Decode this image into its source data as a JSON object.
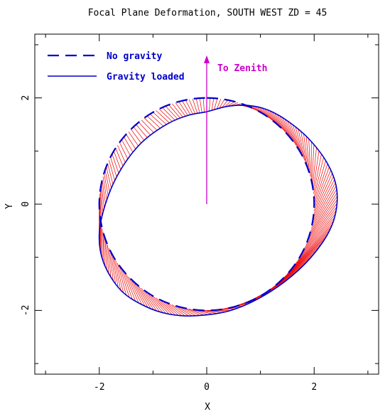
{
  "chart_data": {
    "type": "line",
    "title": "Focal Plane Deformation, SOUTH WEST ZD = 45",
    "xlabel": "X",
    "ylabel": "Y",
    "xlim": [
      -3.2,
      3.2
    ],
    "ylim": [
      -3.2,
      3.2
    ],
    "xticks": [
      -2,
      0,
      2
    ],
    "yticks": [
      -2,
      0,
      2
    ],
    "xtick_labels": [
      "-2",
      "0",
      "2"
    ],
    "ytick_labels": [
      "-2",
      "0",
      "2"
    ],
    "grid": false,
    "legend_position": "top-left",
    "series": [
      {
        "name": "No gravity",
        "style": "dashed",
        "color": "#0000cc",
        "points": [
          [
            0.0,
            2.0
          ],
          [
            0.52,
            1.93
          ],
          [
            1.0,
            1.73
          ],
          [
            1.41,
            1.41
          ],
          [
            1.73,
            1.0
          ],
          [
            1.93,
            0.52
          ],
          [
            2.0,
            0.0
          ],
          [
            1.93,
            -0.52
          ],
          [
            1.73,
            -1.0
          ],
          [
            1.41,
            -1.41
          ],
          [
            1.0,
            -1.73
          ],
          [
            0.52,
            -1.93
          ],
          [
            0.0,
            -2.0
          ],
          [
            -0.52,
            -1.93
          ],
          [
            -1.0,
            -1.73
          ],
          [
            -1.41,
            -1.41
          ],
          [
            -1.73,
            -1.0
          ],
          [
            -1.93,
            -0.52
          ],
          [
            -2.0,
            0.0
          ],
          [
            -1.93,
            0.52
          ],
          [
            -1.73,
            1.0
          ],
          [
            -1.41,
            1.41
          ],
          [
            -1.0,
            1.73
          ],
          [
            -0.52,
            1.93
          ],
          [
            0.0,
            2.0
          ]
        ]
      },
      {
        "name": "Gravity loaded",
        "style": "solid",
        "color": "#0000cc",
        "points": [
          [
            0.0,
            1.74
          ],
          [
            0.38,
            1.84
          ],
          [
            0.75,
            1.86
          ],
          [
            1.12,
            1.78
          ],
          [
            1.5,
            1.57
          ],
          [
            1.9,
            1.23
          ],
          [
            2.25,
            0.76
          ],
          [
            2.42,
            0.28
          ],
          [
            2.38,
            -0.25
          ],
          [
            2.15,
            -0.73
          ],
          [
            1.7,
            -1.25
          ],
          [
            1.1,
            -1.7
          ],
          [
            0.45,
            -2.0
          ],
          [
            -0.2,
            -2.1
          ],
          [
            -0.7,
            -2.07
          ],
          [
            -1.15,
            -1.92
          ],
          [
            -1.6,
            -1.62
          ],
          [
            -1.92,
            -1.1
          ],
          [
            -2.0,
            -0.55
          ],
          [
            -1.86,
            0.08
          ],
          [
            -1.6,
            0.65
          ],
          [
            -1.22,
            1.15
          ],
          [
            -0.75,
            1.5
          ],
          [
            -0.35,
            1.67
          ],
          [
            0.0,
            1.74
          ]
        ]
      }
    ],
    "displacement_color": "#ee0000",
    "annotation": {
      "label": "To Zenith",
      "color": "#cc00cc",
      "from": [
        0.0,
        0.0
      ],
      "to": [
        0.0,
        2.8
      ]
    }
  }
}
